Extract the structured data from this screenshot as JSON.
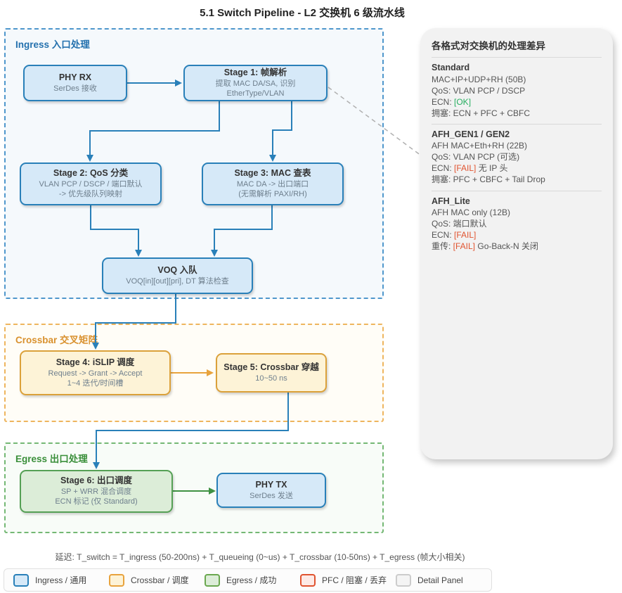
{
  "title": "5.1 Switch Pipeline - L2 交换机 6 级流水线",
  "colors": {
    "blue_accent": "#2980b9",
    "blue_fill": "#d6e9f8",
    "orange_accent": "#e8a33d",
    "orange_fill": "#fdf3d7",
    "green_accent": "#55a055",
    "green_fill": "#dcedd8",
    "gray_dash": "#b0b0b0",
    "panel_bg": "#f2f2f2",
    "label_blue": "#2471ae",
    "label_orange": "#d9912e",
    "label_green": "#3a8f3a",
    "ok": "#27ae60",
    "fail": "#e0532f"
  },
  "sections": {
    "ingress": {
      "label": "Ingress 入口处理"
    },
    "crossbar": {
      "label": "Crossbar 交叉矩阵"
    },
    "egress": {
      "label": "Egress 出口处理"
    }
  },
  "nodes": {
    "phy_rx": {
      "title": "PHY RX",
      "line1": "SerDes 接收"
    },
    "stage1": {
      "title": "Stage 1: 帧解析",
      "line1": "提取 MAC DA/SA, 识别 EtherType/VLAN"
    },
    "stage2": {
      "title": "Stage 2: QoS 分类",
      "line1": "VLAN PCP / DSCP / 端口默认",
      "line2": "-> 优先级队列映射"
    },
    "stage3": {
      "title": "Stage 3: MAC 查表",
      "line1": "MAC DA -> 出口端口",
      "line2": "(无需解析 PAXI/RH)"
    },
    "voq": {
      "title": "VOQ 入队",
      "line1": "VOQ[in][out][pri], DT 算法检查"
    },
    "stage4": {
      "title": "Stage 4: iSLIP 调度",
      "line1": "Request -> Grant -> Accept",
      "line2": "1~4 迭代/时间槽"
    },
    "stage5": {
      "title": "Stage 5: Crossbar 穿越",
      "line1": "10~50 ns"
    },
    "stage6": {
      "title": "Stage 6: 出口调度",
      "line1": "SP + WRR 混合调度",
      "line2": "ECN 标记 (仅 Standard)"
    },
    "phy_tx": {
      "title": "PHY TX",
      "line1": "SerDes 发送"
    }
  },
  "panel": {
    "title": "各格式对交换机的处理差异",
    "groups": [
      {
        "heading": "Standard",
        "lines": [
          [
            {
              "t": "MAC+IP+UDP+RH (50B)"
            }
          ],
          [
            {
              "t": "QoS: VLAN PCP / DSCP"
            }
          ],
          [
            {
              "t": "ECN: "
            },
            {
              "t": "[OK]",
              "c": "ok"
            }
          ],
          [
            {
              "t": "拥塞: ECN + PFC + CBFC"
            }
          ]
        ]
      },
      {
        "heading": "AFH_GEN1 / GEN2",
        "lines": [
          [
            {
              "t": "AFH MAC+Eth+RH (22B)"
            }
          ],
          [
            {
              "t": "QoS: VLAN PCP (可选)"
            }
          ],
          [
            {
              "t": "ECN: "
            },
            {
              "t": "[FAIL]",
              "c": "fail"
            },
            {
              "t": " 无 IP 头"
            }
          ],
          [
            {
              "t": "拥塞: PFC + CBFC + Tail Drop"
            }
          ]
        ]
      },
      {
        "heading": "AFH_Lite",
        "lines": [
          [
            {
              "t": "AFH MAC only (12B)"
            }
          ],
          [
            {
              "t": "QoS: 端口默认"
            }
          ],
          [
            {
              "t": "ECN: "
            },
            {
              "t": "[FAIL]",
              "c": "fail"
            }
          ],
          [
            {
              "t": "重传: "
            },
            {
              "t": "[FAIL]",
              "c": "fail"
            },
            {
              "t": " Go-Back-N 关闭"
            }
          ]
        ]
      }
    ]
  },
  "latency_note": "延迟: T_switch = T_ingress (50-200ns) + T_queueing (0~us) + T_crossbar (10-50ns) + T_egress (帧大小相关)",
  "legend": {
    "items": [
      {
        "label": "Ingress / 通用",
        "fill": "#d6e9f8",
        "border": "#2980b9"
      },
      {
        "label": "Crossbar / 调度",
        "fill": "#fdf3d7",
        "border": "#e8a33d"
      },
      {
        "label": "Egress / 成功",
        "fill": "#dcedd8",
        "border": "#6aa84f"
      },
      {
        "label": "PFC / 阻塞 / 丢弃",
        "fill": "#fdeae6",
        "border": "#e0532f"
      },
      {
        "label": "Detail Panel",
        "fill": "#f4f4f4",
        "border": "#cccccc"
      }
    ]
  }
}
